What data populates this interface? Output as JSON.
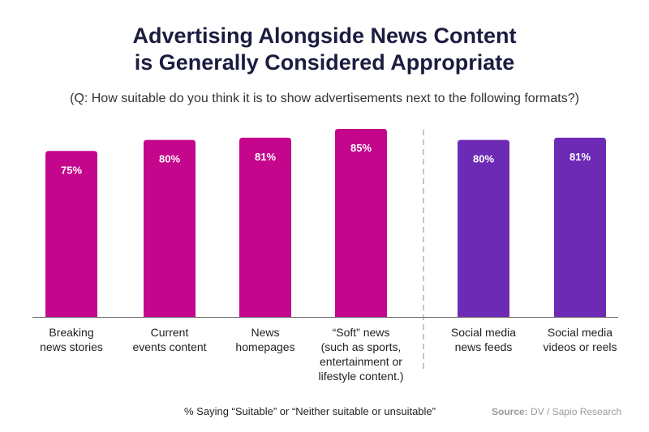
{
  "title_line1": "Advertising Alongside News Content",
  "title_line2": "is Generally Considered Appropriate",
  "subtitle": "(Q: How suitable do you think it is to show advertisements next to the following formats?)",
  "footer_note": "% Saying “Suitable” or “Neither suitable or unsuitable”",
  "source_label": "Source:",
  "source_text": " DV / Sapio Research",
  "colors": {
    "news": "#c4068c",
    "social": "#6d2bb5",
    "bar_label": "#ffffff",
    "divider": "#8a8a8a",
    "axis": "#6a6a6a"
  },
  "chart_data": {
    "type": "bar",
    "title": "Advertising Alongside News Content is Generally Considered Appropriate",
    "xlabel": "",
    "ylabel": "% Saying “Suitable” or “Neither suitable or unsuitable”",
    "ylim": [
      0,
      100
    ],
    "grid": false,
    "categories": [
      [
        "Breaking",
        "news stories"
      ],
      [
        "Current",
        "events content"
      ],
      [
        "News",
        "homepages"
      ],
      [
        "“Soft” news",
        "(such as sports,",
        "entertainment or",
        "lifestyle content.)"
      ],
      [
        "Social media",
        "news feeds"
      ],
      [
        "Social media",
        "videos or reels"
      ]
    ],
    "values": [
      75,
      80,
      81,
      85,
      80,
      81
    ],
    "value_labels": [
      "75%",
      "80%",
      "81%",
      "85%",
      "80%",
      "81%"
    ],
    "groups": [
      "news",
      "news",
      "news",
      "news",
      "social",
      "social"
    ]
  }
}
